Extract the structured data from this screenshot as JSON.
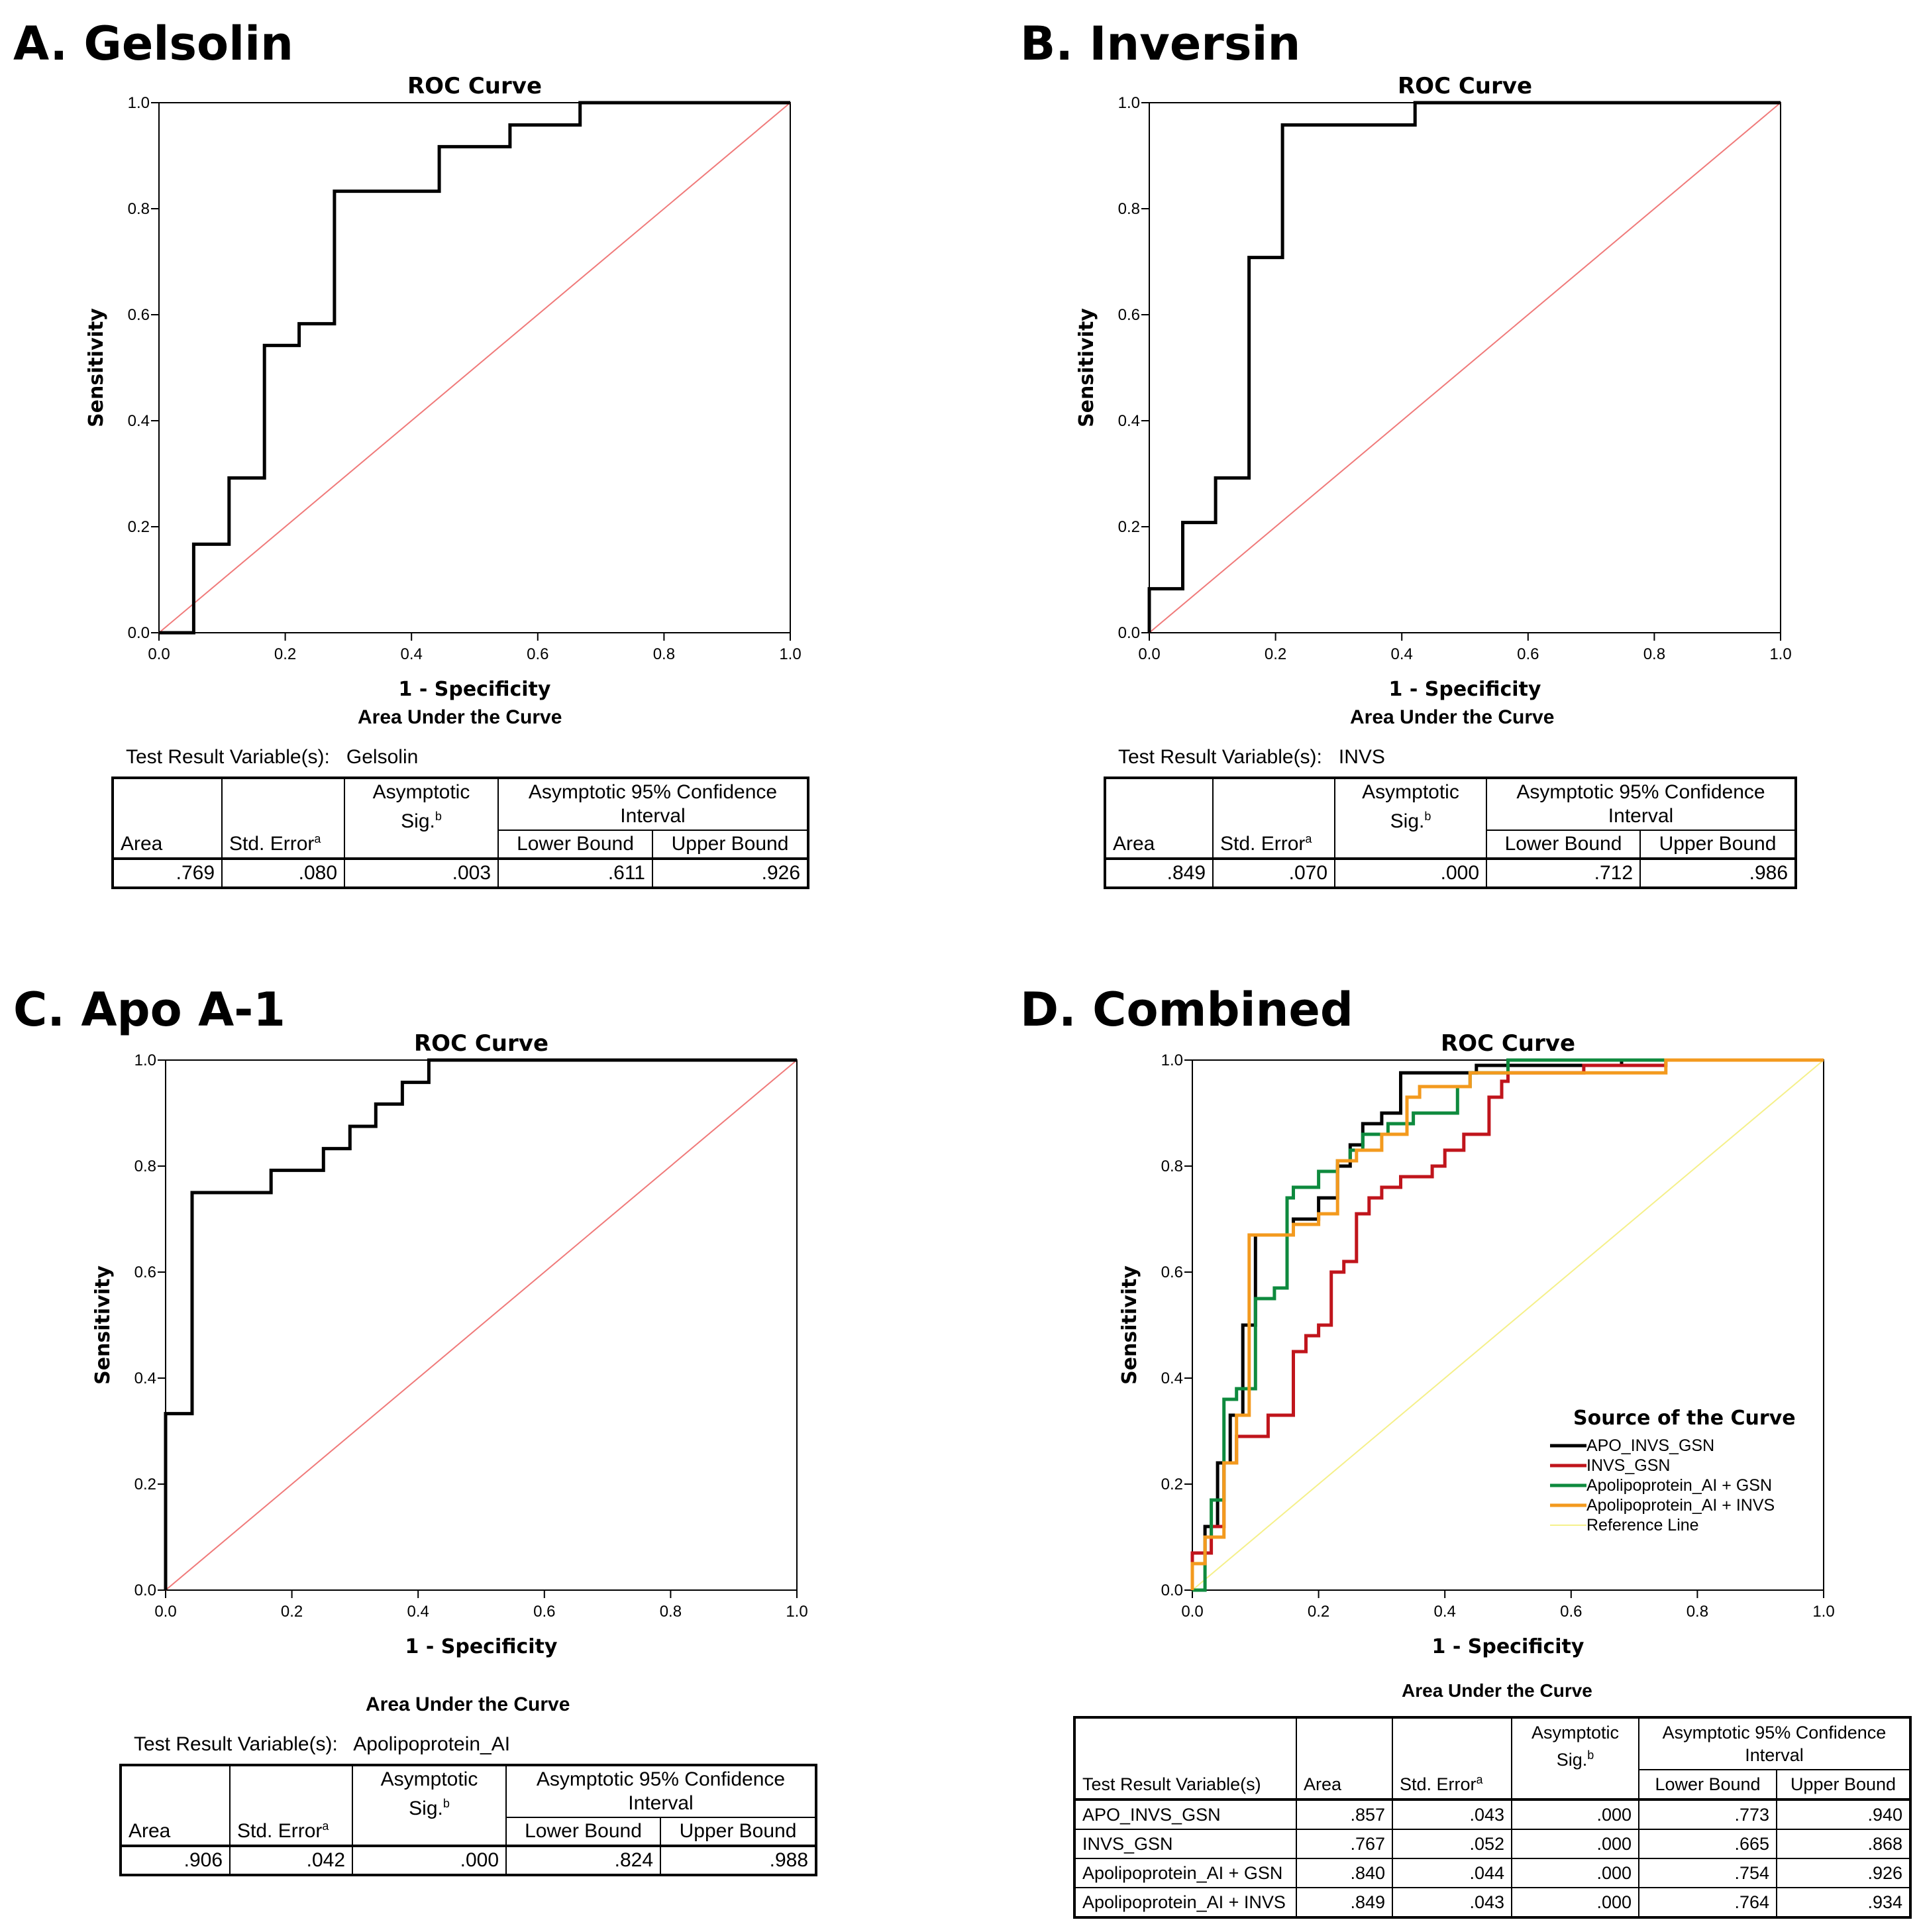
{
  "colors": {
    "roc_line": "#000000",
    "reference_line": "#f07a7a",
    "combo_apo_invs_gsn": "#000000",
    "combo_invs_gsn": "#c0151c",
    "combo_apo_gsn": "#0e8a3e",
    "combo_apo_invs": "#f39a1e",
    "combo_reference": "#f5f08a"
  },
  "panels": [
    {
      "id": "A",
      "label": "A. Gelsolin",
      "auc_title": "Area Under the Curve",
      "trv_label": "Test Result Variable(s):",
      "trv_value": "Gelsolin",
      "table": {
        "area": ".769",
        "se": ".080",
        "sig": ".003",
        "lower": ".611",
        "upper": ".926"
      }
    },
    {
      "id": "B",
      "label": "B. Inversin",
      "auc_title": "Area Under the Curve",
      "trv_label": "Test Result Variable(s):",
      "trv_value": "INVS",
      "table": {
        "area": ".849",
        "se": ".070",
        "sig": ".000",
        "lower": ".712",
        "upper": ".986"
      }
    },
    {
      "id": "C",
      "label": "C. Apo A-1",
      "auc_title": "Area Under the Curve",
      "trv_label": "Test Result Variable(s):",
      "trv_value": "Apolipoprotein_AI",
      "table": {
        "area": ".906",
        "se": ".042",
        "sig": ".000",
        "lower": ".824",
        "upper": ".988"
      }
    },
    {
      "id": "D",
      "label": "D. Combined",
      "auc_title": "Area Under the Curve",
      "trv_label": "Test Result Variable(s)",
      "rows": [
        {
          "name": "APO_INVS_GSN",
          "area": ".857",
          "se": ".043",
          "sig": ".000",
          "lower": ".773",
          "upper": ".940"
        },
        {
          "name": "INVS_GSN",
          "area": ".767",
          "se": ".052",
          "sig": ".000",
          "lower": ".665",
          "upper": ".868"
        },
        {
          "name": "Apolipoprotein_AI + GSN",
          "area": ".840",
          "se": ".044",
          "sig": ".000",
          "lower": ".754",
          "upper": ".926"
        },
        {
          "name": "Apolipoprotein_AI + INVS",
          "area": ".849",
          "se": ".043",
          "sig": ".000",
          "lower": ".764",
          "upper": ".934"
        }
      ]
    }
  ],
  "table_headers": {
    "area": "Area",
    "se": "Std. Error",
    "se_sup": "a",
    "sig": "Asymptotic Sig.",
    "sig_sup": "b",
    "ci": "Asymptotic 95% Confidence Interval",
    "lower": "Lower Bound",
    "upper": "Upper Bound"
  },
  "legend": {
    "title": "Source of the Curve"
  },
  "chart_data": [
    {
      "panel": "A",
      "type": "line",
      "title": "ROC Curve",
      "xlabel": "1 - Specificity",
      "ylabel": "Sensitivity",
      "xlim": [
        0,
        1
      ],
      "ylim": [
        0,
        1
      ],
      "ticks": [
        "0.0",
        "0.2",
        "0.4",
        "0.6",
        "0.8",
        "1.0"
      ],
      "series": [
        {
          "name": "Gelsolin",
          "color": "#000000",
          "x": [
            0,
            0.055,
            0.055,
            0.111,
            0.111,
            0.167,
            0.167,
            0.222,
            0.222,
            0.278,
            0.278,
            0.444,
            0.444,
            0.556,
            0.556,
            0.667,
            0.667,
            1.0
          ],
          "y": [
            0,
            0,
            0.167,
            0.167,
            0.292,
            0.292,
            0.542,
            0.542,
            0.583,
            0.583,
            0.833,
            0.833,
            0.917,
            0.917,
            0.958,
            0.958,
            1.0,
            1.0
          ]
        },
        {
          "name": "Reference Line",
          "color": "#f07a7a",
          "x": [
            0,
            1
          ],
          "y": [
            0,
            1
          ]
        }
      ]
    },
    {
      "panel": "B",
      "type": "line",
      "title": "ROC Curve",
      "xlabel": "1 - Specificity",
      "ylabel": "Sensitivity",
      "xlim": [
        0,
        1
      ],
      "ylim": [
        0,
        1
      ],
      "ticks": [
        "0.0",
        "0.2",
        "0.4",
        "0.6",
        "0.8",
        "1.0"
      ],
      "series": [
        {
          "name": "INVS",
          "color": "#000000",
          "x": [
            0,
            0,
            0.053,
            0.053,
            0.105,
            0.105,
            0.158,
            0.158,
            0.211,
            0.211,
            0.421,
            0.421,
            1.0
          ],
          "y": [
            0,
            0.083,
            0.083,
            0.208,
            0.208,
            0.292,
            0.292,
            0.708,
            0.708,
            0.958,
            0.958,
            1.0,
            1.0
          ]
        },
        {
          "name": "Reference Line",
          "color": "#f07a7a",
          "x": [
            0,
            1
          ],
          "y": [
            0,
            1
          ]
        }
      ]
    },
    {
      "panel": "C",
      "type": "line",
      "title": "ROC Curve",
      "xlabel": "1 - Specificity",
      "ylabel": "Sensitivity",
      "xlim": [
        0,
        1
      ],
      "ylim": [
        0,
        1
      ],
      "ticks": [
        "0.0",
        "0.2",
        "0.4",
        "0.6",
        "0.8",
        "1.0"
      ],
      "series": [
        {
          "name": "Apolipoprotein_AI",
          "color": "#000000",
          "x": [
            0,
            0,
            0.042,
            0.042,
            0.167,
            0.167,
            0.25,
            0.25,
            0.292,
            0.292,
            0.333,
            0.333,
            0.375,
            0.375,
            0.417,
            0.417,
            1.0
          ],
          "y": [
            0,
            0.333,
            0.333,
            0.75,
            0.75,
            0.792,
            0.792,
            0.833,
            0.833,
            0.875,
            0.875,
            0.917,
            0.917,
            0.958,
            0.958,
            1.0,
            1.0
          ]
        },
        {
          "name": "Reference Line",
          "color": "#f07a7a",
          "x": [
            0,
            1
          ],
          "y": [
            0,
            1
          ]
        }
      ]
    },
    {
      "panel": "D",
      "type": "line",
      "title": "ROC Curve",
      "xlabel": "1 - Specificity",
      "ylabel": "Sensitivity",
      "xlim": [
        0,
        1
      ],
      "ylim": [
        0,
        1
      ],
      "ticks": [
        "0.0",
        "0.2",
        "0.4",
        "0.6",
        "0.8",
        "1.0"
      ],
      "series": [
        {
          "name": "APO_INVS_GSN",
          "color": "#000000",
          "x": [
            0,
            0,
            0.02,
            0.02,
            0.04,
            0.04,
            0.06,
            0.06,
            0.08,
            0.08,
            0.1,
            0.1,
            0.16,
            0.16,
            0.2,
            0.2,
            0.23,
            0.23,
            0.25,
            0.25,
            0.27,
            0.27,
            0.3,
            0.3,
            0.33,
            0.33,
            0.45,
            0.45,
            0.68,
            0.68,
            1.0
          ],
          "y": [
            0,
            0.05,
            0.05,
            0.12,
            0.12,
            0.24,
            0.24,
            0.33,
            0.33,
            0.5,
            0.5,
            0.67,
            0.67,
            0.7,
            0.7,
            0.74,
            0.74,
            0.8,
            0.8,
            0.84,
            0.84,
            0.88,
            0.88,
            0.9,
            0.9,
            0.976,
            0.976,
            0.99,
            0.99,
            1.0,
            1.0
          ]
        },
        {
          "name": "INVS_GSN",
          "color": "#c0151c",
          "x": [
            0,
            0,
            0.03,
            0.03,
            0.05,
            0.05,
            0.07,
            0.07,
            0.12,
            0.12,
            0.16,
            0.16,
            0.18,
            0.18,
            0.2,
            0.2,
            0.22,
            0.22,
            0.24,
            0.24,
            0.26,
            0.26,
            0.28,
            0.28,
            0.3,
            0.3,
            0.33,
            0.33,
            0.38,
            0.38,
            0.4,
            0.4,
            0.43,
            0.43,
            0.47,
            0.47,
            0.49,
            0.49,
            0.5,
            0.5,
            0.62,
            0.62,
            0.75,
            0.75,
            1.0
          ],
          "y": [
            0,
            0.07,
            0.07,
            0.12,
            0.12,
            0.24,
            0.24,
            0.29,
            0.29,
            0.33,
            0.33,
            0.45,
            0.45,
            0.48,
            0.48,
            0.5,
            0.5,
            0.6,
            0.6,
            0.62,
            0.62,
            0.71,
            0.71,
            0.74,
            0.74,
            0.76,
            0.76,
            0.78,
            0.78,
            0.8,
            0.8,
            0.83,
            0.83,
            0.86,
            0.86,
            0.93,
            0.93,
            0.96,
            0.96,
            0.976,
            0.976,
            0.99,
            0.99,
            1.0,
            1.0
          ]
        },
        {
          "name": "Apolipoprotein_AI + GSN",
          "color": "#0e8a3e",
          "x": [
            0,
            0.02,
            0.02,
            0.03,
            0.03,
            0.05,
            0.05,
            0.07,
            0.07,
            0.1,
            0.1,
            0.13,
            0.13,
            0.15,
            0.15,
            0.16,
            0.16,
            0.2,
            0.2,
            0.23,
            0.23,
            0.25,
            0.25,
            0.27,
            0.27,
            0.31,
            0.31,
            0.35,
            0.35,
            0.42,
            0.42,
            0.44,
            0.44,
            0.5,
            0.5,
            0.65,
            0.65,
            1.0
          ],
          "y": [
            0,
            0,
            0.1,
            0.1,
            0.17,
            0.17,
            0.36,
            0.36,
            0.38,
            0.38,
            0.55,
            0.55,
            0.57,
            0.57,
            0.74,
            0.74,
            0.76,
            0.76,
            0.79,
            0.79,
            0.81,
            0.81,
            0.83,
            0.83,
            0.86,
            0.86,
            0.88,
            0.88,
            0.9,
            0.9,
            0.95,
            0.95,
            0.976,
            0.976,
            1.0,
            1.0,
            1.0,
            1.0
          ]
        },
        {
          "name": "Apolipoprotein_AI + INVS",
          "color": "#f39a1e",
          "x": [
            0,
            0,
            0.02,
            0.02,
            0.05,
            0.05,
            0.07,
            0.07,
            0.09,
            0.09,
            0.16,
            0.16,
            0.2,
            0.2,
            0.23,
            0.23,
            0.26,
            0.26,
            0.3,
            0.3,
            0.34,
            0.34,
            0.36,
            0.36,
            0.44,
            0.44,
            0.75,
            0.75,
            1.0
          ],
          "y": [
            0,
            0.05,
            0.05,
            0.1,
            0.1,
            0.24,
            0.24,
            0.33,
            0.33,
            0.67,
            0.67,
            0.69,
            0.69,
            0.71,
            0.71,
            0.81,
            0.81,
            0.83,
            0.83,
            0.86,
            0.86,
            0.93,
            0.93,
            0.95,
            0.95,
            0.976,
            0.976,
            1.0,
            1.0
          ]
        },
        {
          "name": "Reference Line",
          "color": "#f5f08a",
          "x": [
            0,
            1
          ],
          "y": [
            0,
            1
          ]
        }
      ]
    }
  ]
}
